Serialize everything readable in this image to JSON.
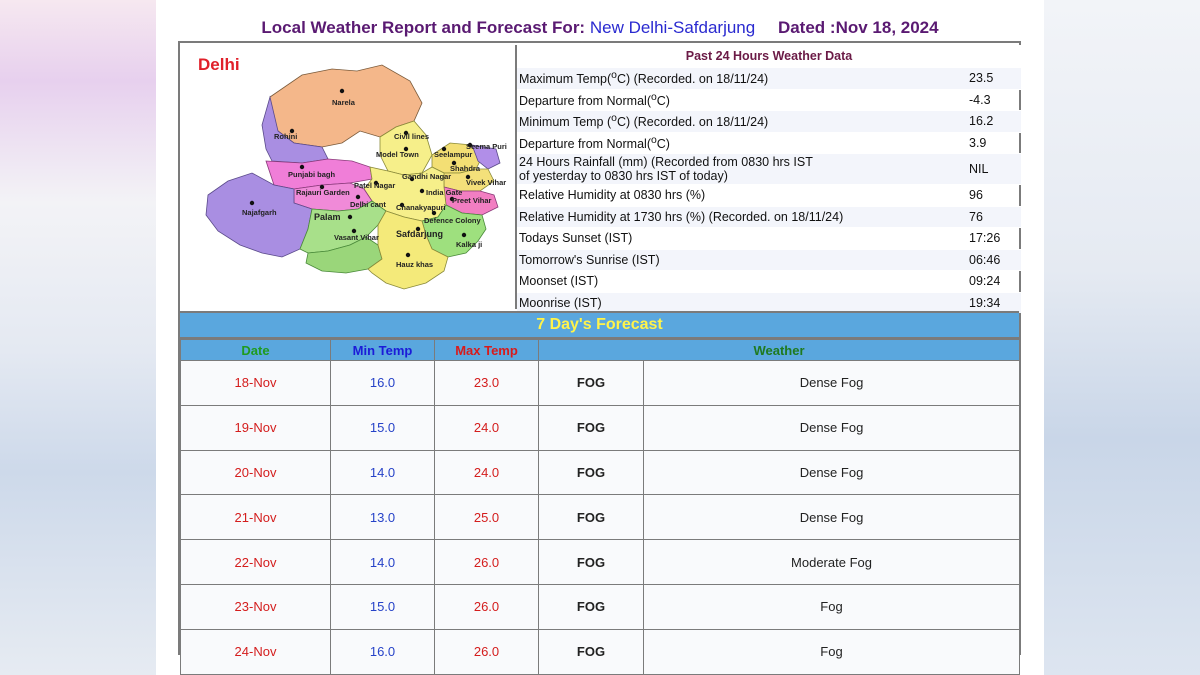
{
  "header": {
    "prefix": "Local Weather Report and Forecast For:",
    "station": "New Delhi-Safdarjung",
    "dated": "Dated :Nov 18, 2024"
  },
  "map": {
    "title": "Delhi",
    "labels": [
      "Narela",
      "Rohini",
      "Civil lines",
      "Model Town",
      "Seema Puri",
      "Seelampur",
      "Shahdra",
      "Vivek Vihar",
      "Punjabi bagh",
      "Gandhi Nagar",
      "Rajauri Garden",
      "Patel Nagar",
      "India Gate",
      "Preet Vihar",
      "Najafgarh",
      "Delhi cant",
      "Chanakyapuri",
      "Palam",
      "Defence Colony",
      "Vasant Vihar",
      "Safdarjung",
      "Kalka ji",
      "Hauz khas"
    ]
  },
  "past24": {
    "heading": "Past 24 Hours Weather Data",
    "rows": [
      {
        "label": "Maximum Temp(°C) (Recorded. on 18/11/24)",
        "value": "23.5"
      },
      {
        "label": "Departure from Normal(°C)",
        "value": "-4.3"
      },
      {
        "label": "Minimum Temp (°C) (Recorded. on 18/11/24)",
        "value": "16.2"
      },
      {
        "label": "Departure from Normal(°C)",
        "value": "3.9"
      },
      {
        "label1": "24 Hours Rainfall (mm) (Recorded from 0830 hrs IST",
        "label2": "of yesterday to 0830 hrs IST of today)",
        "value": "NIL"
      },
      {
        "label": "Relative Humidity at 0830 hrs (%)",
        "value": "96"
      },
      {
        "label": "Relative Humidity at 1730 hrs (%) (Recorded. on 18/11/24)",
        "value": "76"
      },
      {
        "label": "Todays Sunset (IST)",
        "value": "17:26"
      },
      {
        "label": "Tomorrow's Sunrise (IST)",
        "value": "06:46"
      },
      {
        "label": "Moonset (IST)",
        "value": "09:24"
      },
      {
        "label": "Moonrise (IST)",
        "value": "19:34"
      }
    ]
  },
  "forecast": {
    "title": "7 Day's Forecast",
    "columns": {
      "date": "Date",
      "min": "Min Temp",
      "max": "Max Temp",
      "weather": "Weather"
    },
    "rows": [
      {
        "date": "18-Nov",
        "min": "16.0",
        "max": "23.0",
        "code": "FOG",
        "desc": "Dense Fog"
      },
      {
        "date": "19-Nov",
        "min": "15.0",
        "max": "24.0",
        "code": "FOG",
        "desc": "Dense Fog"
      },
      {
        "date": "20-Nov",
        "min": "14.0",
        "max": "24.0",
        "code": "FOG",
        "desc": "Dense Fog"
      },
      {
        "date": "21-Nov",
        "min": "13.0",
        "max": "25.0",
        "code": "FOG",
        "desc": "Dense Fog"
      },
      {
        "date": "22-Nov",
        "min": "14.0",
        "max": "26.0",
        "code": "FOG",
        "desc": "Moderate Fog"
      },
      {
        "date": "23-Nov",
        "min": "15.0",
        "max": "26.0",
        "code": "FOG",
        "desc": "Fog"
      },
      {
        "date": "24-Nov",
        "min": "16.0",
        "max": "26.0",
        "code": "FOG",
        "desc": "Fog"
      }
    ]
  }
}
